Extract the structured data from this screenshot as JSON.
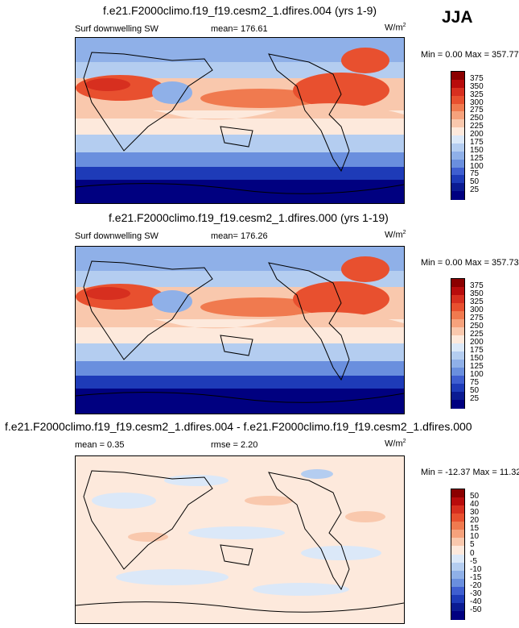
{
  "season": "JJA",
  "chart_data": [
    {
      "type": "heatmap",
      "title": "f.e21.F2000climo.f19_f19.cesm2_1.dfires.004 (yrs 1-9)",
      "variable": "Surf downwelling SW",
      "mean_label": "mean= 176.61",
      "units_base": "W/m",
      "units_exp": "2",
      "minmax": "Min =   0.00 Max = 357.77",
      "colorbar_levels": [
        375,
        350,
        325,
        300,
        275,
        250,
        225,
        200,
        175,
        150,
        125,
        100,
        75,
        50,
        25
      ],
      "colorbar_colors": [
        "#8b0000",
        "#b80c0c",
        "#d72f1f",
        "#e8502f",
        "#f07a4f",
        "#f6a27c",
        "#f9c8ad",
        "#fde9dc",
        "#dbe8f8",
        "#b4cdf0",
        "#8fb0e8",
        "#6a8fde",
        "#3f5fd0",
        "#1e3bb8",
        "#0b1b92",
        "#000080"
      ],
      "map_mean": 176.61
    },
    {
      "type": "heatmap",
      "title": "f.e21.F2000climo.f19_f19.cesm2_1.dfires.000 (yrs 1-19)",
      "variable": "Surf downwelling SW",
      "mean_label": "mean= 176.26",
      "units_base": "W/m",
      "units_exp": "2",
      "minmax": "Min =   0.00 Max = 357.73",
      "colorbar_levels": [
        375,
        350,
        325,
        300,
        275,
        250,
        225,
        200,
        175,
        150,
        125,
        100,
        75,
        50,
        25
      ],
      "colorbar_colors": [
        "#8b0000",
        "#b80c0c",
        "#d72f1f",
        "#e8502f",
        "#f07a4f",
        "#f6a27c",
        "#f9c8ad",
        "#fde9dc",
        "#dbe8f8",
        "#b4cdf0",
        "#8fb0e8",
        "#6a8fde",
        "#3f5fd0",
        "#1e3bb8",
        "#0b1b92",
        "#000080"
      ],
      "map_mean": 176.26
    },
    {
      "type": "heatmap",
      "title": "f.e21.F2000climo.f19_f19.cesm2_1.dfires.004 - f.e21.F2000climo.f19_f19.cesm2_1.dfires.000",
      "mean_label": "mean =   0.35",
      "rmse_label": "rmse =   2.20",
      "units_base": "W/m",
      "units_exp": "2",
      "minmax": "Min = -12.37 Max =  11.32",
      "colorbar_levels": [
        50,
        40,
        30,
        20,
        15,
        10,
        5,
        0,
        -5,
        -10,
        -15,
        -20,
        -30,
        -40,
        -50
      ],
      "colorbar_colors": [
        "#8b0000",
        "#b80c0c",
        "#d72f1f",
        "#e8502f",
        "#f07a4f",
        "#f6a27c",
        "#f9c8ad",
        "#fde9dc",
        "#dbe8f8",
        "#b4cdf0",
        "#8fb0e8",
        "#6a8fde",
        "#3f5fd0",
        "#1e3bb8",
        "#0b1b92",
        "#000080"
      ],
      "map_mean": 0.35
    }
  ]
}
